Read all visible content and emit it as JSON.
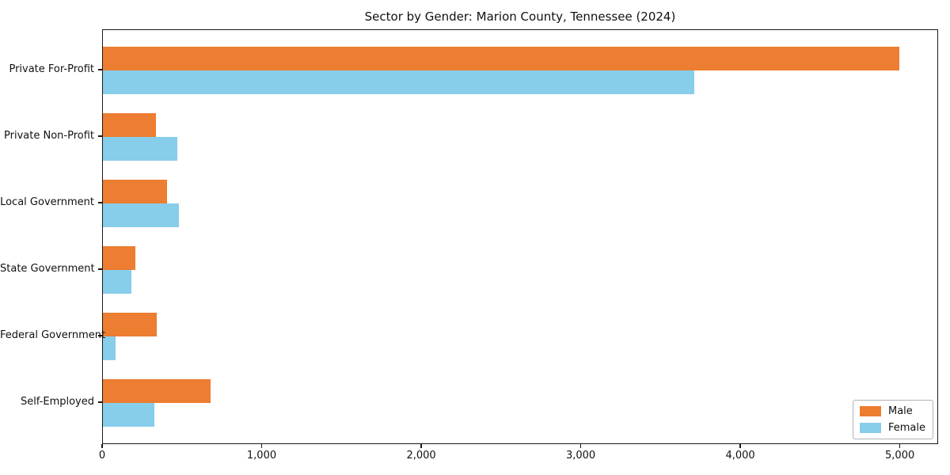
{
  "chart_data": {
    "type": "bar",
    "orientation": "horizontal",
    "title": "Sector by Gender: Marion County, Tennessee (2024)",
    "xlabel": "",
    "ylabel": "",
    "categories": [
      "Private For-Profit",
      "Private Non-Profit",
      "Local Government",
      "State Government",
      "Federal Government",
      "Self-Employed"
    ],
    "series": [
      {
        "name": "Male",
        "color": "#ED7D31",
        "values": [
          4990,
          330,
          400,
          205,
          335,
          675
        ]
      },
      {
        "name": "Female",
        "color": "#87CEEB",
        "values": [
          3705,
          465,
          475,
          180,
          80,
          320
        ]
      }
    ],
    "xlim": [
      0,
      5240
    ],
    "xticks": [
      0,
      1000,
      2000,
      3000,
      4000,
      5000
    ],
    "xtick_labels": [
      "0",
      "1,000",
      "2,000",
      "3,000",
      "4,000",
      "5,000"
    ],
    "grid": false,
    "legend_position": "lower right",
    "frame_color": "#1a1a1a",
    "background_color": "#ffffff"
  }
}
